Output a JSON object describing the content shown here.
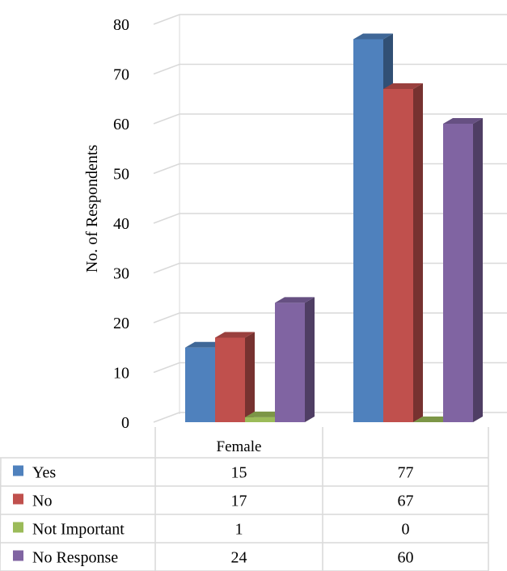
{
  "chart_data": {
    "type": "bar",
    "style": "3d-clustered-column-with-data-table",
    "ylabel": "No. of Respondents",
    "xlabel": "",
    "ylim": [
      0,
      80
    ],
    "yticks": [
      0,
      10,
      20,
      30,
      40,
      50,
      60,
      70,
      80
    ],
    "categories": [
      "Female",
      ""
    ],
    "series": [
      {
        "name": "Yes",
        "color": "#4F81BD",
        "values": [
          15,
          77
        ]
      },
      {
        "name": "No",
        "color": "#C0504D",
        "values": [
          17,
          67
        ]
      },
      {
        "name": "Not Important",
        "color": "#9BBB59",
        "values": [
          1,
          0
        ]
      },
      {
        "name": "No Response",
        "color": "#8064A2",
        "values": [
          24,
          60
        ]
      }
    ],
    "grid": true,
    "legend": "data-table-left"
  }
}
